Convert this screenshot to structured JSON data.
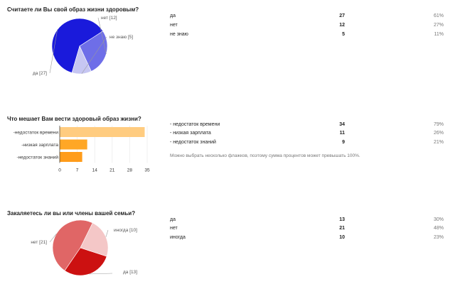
{
  "chart_data": [
    {
      "type": "pie",
      "title": "Считаете ли Вы свой образ жизни здоровым?",
      "slices": [
        {
          "label": "да",
          "value": 27,
          "count_label": "27",
          "percent": "61%",
          "pie_label": "да [27]",
          "color": "#1a1adb"
        },
        {
          "label": "нет",
          "value": 12,
          "count_label": "12",
          "percent": "27%",
          "pie_label": "нет [12]",
          "color": "#6e6ee8"
        },
        {
          "label": "не знаю",
          "value": 5,
          "count_label": "5",
          "percent": "11%",
          "pie_label": "не знаю [5]",
          "color": "#c6c6f2"
        }
      ]
    },
    {
      "type": "bar",
      "orientation": "horizontal",
      "title": "Что мешает Вам вести здоровый образ жизни?",
      "categories": [
        "-недостаток времени",
        "-низкая зарплата",
        "-недостаток знаний"
      ],
      "values": [
        34,
        11,
        9
      ],
      "colors": [
        "#ffcc80",
        "#ffa726",
        "#ff9c1a"
      ],
      "xticks": [
        "0",
        "7",
        "14",
        "21",
        "28",
        "35"
      ],
      "xlim": [
        0,
        35
      ],
      "table": [
        {
          "label": "- недостаток времени",
          "count": "34",
          "percent": "79%"
        },
        {
          "label": "- низкая зарплата",
          "count": "11",
          "percent": "26%"
        },
        {
          "label": "- недостаток знаний",
          "count": "9",
          "percent": "21%"
        }
      ],
      "note": "Можно выбрать несколько флажков, поэтому сумма процентов может превышать 100%."
    },
    {
      "type": "pie",
      "title": "Закаляетесь ли вы или члены вашей семьи?",
      "slices": [
        {
          "label": "да",
          "value": 13,
          "count_label": "13",
          "percent": "30%",
          "pie_label": "да [13]",
          "color": "#cc1111"
        },
        {
          "label": "нет",
          "value": 21,
          "count_label": "21",
          "percent": "48%",
          "pie_label": "нет [21]",
          "color": "#e06666"
        },
        {
          "label": "иногда",
          "value": 10,
          "count_label": "10",
          "percent": "23%",
          "pie_label": "иногда [10]",
          "color": "#f4c7c7"
        }
      ]
    }
  ]
}
